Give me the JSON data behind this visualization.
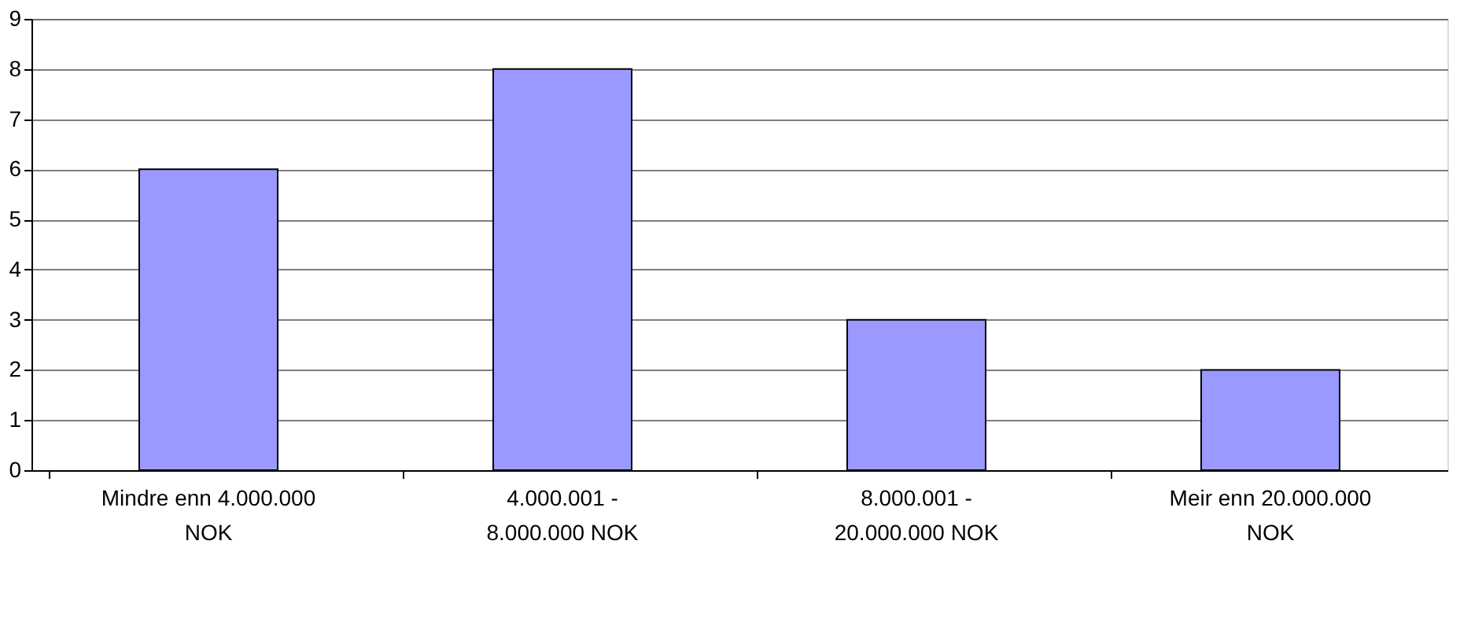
{
  "chart_data": {
    "type": "bar",
    "categories": [
      "Mindre enn 4.000.000\nNOK",
      "4.000.001 -\n8.000.000 NOK",
      "8.000.001 -\n20.000.000 NOK",
      "Meir enn 20.000.000\nNOK"
    ],
    "values": [
      6,
      8,
      3,
      2
    ],
    "color": "#9999ff",
    "ylim": [
      0,
      9
    ],
    "yticks": [
      0,
      1,
      2,
      3,
      4,
      5,
      6,
      7,
      8,
      9
    ],
    "grid": "y"
  }
}
